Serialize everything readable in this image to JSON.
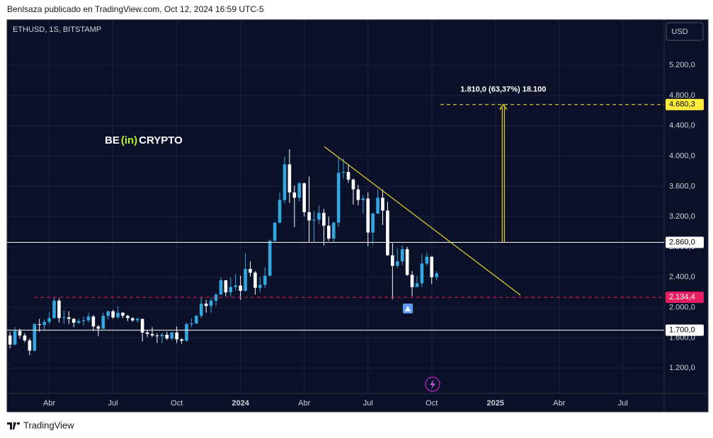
{
  "header": "Benlsaza publicado en TradingView.com, Oct 12, 2024 16:59 UTC-5",
  "logo": {
    "a": "BE",
    "b": "(in)",
    "c": "CRYPTO"
  },
  "footer": "TradingView",
  "chart_data": {
    "type": "candlestick",
    "title": "ETHUSD, 1S, BITSTAMP",
    "currency": "USD",
    "up_color": "#33a7e0",
    "down_color": "#ffffff",
    "grid": true,
    "x": [
      5,
      6,
      7,
      8,
      9,
      10,
      11,
      12,
      13,
      14,
      15,
      16,
      17,
      18,
      19,
      20,
      21,
      22,
      23,
      24,
      25,
      26,
      27,
      28,
      29,
      30,
      31,
      32,
      33,
      34,
      35,
      36,
      37,
      38,
      39,
      40,
      41,
      42,
      43,
      44,
      45,
      46,
      47,
      48,
      49,
      50,
      51,
      52,
      53,
      54,
      55,
      56,
      57,
      58,
      59,
      60,
      61,
      62,
      63,
      64,
      65,
      66,
      67,
      68,
      69,
      70,
      71,
      72,
      73,
      74,
      75,
      76,
      77,
      78,
      79,
      80,
      81,
      82,
      83,
      84,
      85,
      86,
      87,
      88,
      89,
      90,
      91,
      92
    ],
    "open": [
      1630,
      1510,
      1690,
      1630,
      1565,
      1430,
      1780,
      1770,
      1810,
      1860,
      2090,
      1860,
      1870,
      1850,
      1800,
      1820,
      1830,
      1880,
      1750,
      1720,
      1890,
      1950,
      1870,
      1930,
      1890,
      1860,
      1830,
      1850,
      1670,
      1650,
      1630,
      1620,
      1640,
      1590,
      1670,
      1580,
      1560,
      1780,
      1790,
      1890,
      2050,
      2020,
      2090,
      2170,
      2360,
      2200,
      2270,
      2290,
      2220,
      2510,
      2460,
      2260,
      2300,
      2420,
      2880,
      3120,
      3420,
      3890,
      3520,
      3450,
      3640,
      3260,
      3150,
      3160,
      3250,
      3080,
      2910,
      3120,
      3780,
      3790,
      3690,
      3560,
      3420,
      3440,
      2990,
      3240,
      3450,
      3280,
      2690,
      2550,
      2610,
      2770,
      2430,
      2270,
      2320,
      2580,
      2670,
      2400
    ],
    "high": [
      1680,
      1740,
      1720,
      1660,
      1590,
      1800,
      1850,
      1840,
      1940,
      2140,
      2120,
      1960,
      1950,
      1860,
      1850,
      1880,
      1930,
      1900,
      1770,
      1930,
      1960,
      1970,
      2020,
      1940,
      1900,
      1870,
      1870,
      1850,
      1700,
      1740,
      1660,
      1670,
      1680,
      1680,
      1750,
      1590,
      1800,
      1860,
      1900,
      2140,
      2100,
      2130,
      2190,
      2400,
      2360,
      2400,
      2440,
      2420,
      2720,
      2610,
      2480,
      2400,
      2530,
      2900,
      3130,
      3520,
      3990,
      4090,
      3610,
      3660,
      3650,
      3730,
      3280,
      3350,
      3300,
      3200,
      3130,
      3980,
      3970,
      3890,
      3700,
      3620,
      3480,
      3520,
      3250,
      3560,
      3560,
      3400,
      2850,
      2780,
      2820,
      2800,
      2480,
      2420,
      2700,
      2730,
      2680,
      2480
    ],
    "low": [
      1460,
      1500,
      1590,
      1540,
      1370,
      1420,
      1680,
      1710,
      1780,
      1850,
      1800,
      1780,
      1780,
      1740,
      1780,
      1760,
      1800,
      1690,
      1620,
      1720,
      1840,
      1850,
      1850,
      1860,
      1820,
      1810,
      1800,
      1550,
      1610,
      1610,
      1530,
      1530,
      1570,
      1570,
      1530,
      1520,
      1550,
      1740,
      1780,
      1860,
      1930,
      1930,
      2020,
      2170,
      2150,
      2140,
      2220,
      2100,
      2210,
      2410,
      2170,
      2200,
      2260,
      2410,
      2880,
      3110,
      3380,
      3380,
      3060,
      3400,
      3200,
      2860,
      2860,
      3100,
      2820,
      2880,
      2860,
      3060,
      3700,
      3650,
      3360,
      3350,
      3240,
      2810,
      2830,
      3240,
      3090,
      2680,
      2110,
      2520,
      2560,
      2420,
      2150,
      2270,
      2270,
      2550,
      2310,
      2360
    ],
    "close": [
      1510,
      1690,
      1630,
      1565,
      1430,
      1780,
      1770,
      1810,
      1860,
      2090,
      1860,
      1870,
      1850,
      1800,
      1820,
      1830,
      1880,
      1750,
      1720,
      1890,
      1950,
      1870,
      1930,
      1890,
      1860,
      1830,
      1850,
      1670,
      1650,
      1630,
      1620,
      1640,
      1590,
      1670,
      1580,
      1560,
      1780,
      1790,
      1890,
      2050,
      2020,
      2090,
      2170,
      2360,
      2200,
      2270,
      2290,
      2220,
      2510,
      2460,
      2260,
      2300,
      2420,
      2880,
      3120,
      3420,
      3890,
      3520,
      3450,
      3640,
      3260,
      3150,
      3160,
      3250,
      3080,
      2910,
      3120,
      3780,
      3790,
      3690,
      3560,
      3420,
      3440,
      2990,
      3240,
      3450,
      3280,
      2690,
      2550,
      2610,
      2770,
      2430,
      2270,
      2320,
      2580,
      2670,
      2400,
      2450
    ],
    "xlim": [
      4.4,
      138.4
    ],
    "xticks": [
      {
        "value": 13,
        "label": "Abr"
      },
      {
        "value": 26,
        "label": "Jul"
      },
      {
        "value": 39,
        "label": "Oct"
      },
      {
        "value": 52,
        "label": "2024",
        "bold": true
      },
      {
        "value": 65,
        "label": "Abr"
      },
      {
        "value": 78,
        "label": "Jul"
      },
      {
        "value": 91,
        "label": "Oct"
      },
      {
        "value": 104,
        "label": "2025",
        "bold": true
      },
      {
        "value": 117,
        "label": "Abr"
      },
      {
        "value": 130,
        "label": "Jul"
      }
    ],
    "ylim": [
      865,
      5800
    ],
    "yticks": [
      {
        "value": 1200,
        "label": "1.200,0"
      },
      {
        "value": 1600,
        "label": "1.600,0"
      },
      {
        "value": 2000,
        "label": "2.000,0"
      },
      {
        "value": 2400,
        "label": "2.400,0"
      },
      {
        "value": 2800,
        "label": "2.800,0"
      },
      {
        "value": 3200,
        "label": "3.200,0"
      },
      {
        "value": 3600,
        "label": "3.600,0"
      },
      {
        "value": 4000,
        "label": "4.000,0"
      },
      {
        "value": 4400,
        "label": "4.400,0"
      },
      {
        "value": 4800,
        "label": "4.800,0"
      },
      {
        "value": 5200,
        "label": "5.200,0"
      }
    ],
    "levels": [
      {
        "value": 2860,
        "label": "2.860,0",
        "color": "#ffffff",
        "text_color": "#000000",
        "style": "solid"
      },
      {
        "value": 1700,
        "label": "1.700,0",
        "color": "#ffffff",
        "text_color": "#000000",
        "style": "solid"
      },
      {
        "value": 2134.4,
        "label": "2.134,4",
        "color": "#e91e63",
        "text_color": "#ffffff",
        "style": "dashed"
      },
      {
        "value": 4680.3,
        "label": "4.680,3",
        "color": "#ffeb3b",
        "text_color": "#000000",
        "style": "dashed"
      }
    ],
    "trendline": {
      "x": [
        69.1,
        109.1
      ],
      "y": [
        4125,
        2163
      ],
      "color": "#e6d42a"
    },
    "annotation": {
      "text": "1.810,0 (63,37%) 18.100",
      "x": 105.6,
      "color": "#e6d42a"
    }
  }
}
